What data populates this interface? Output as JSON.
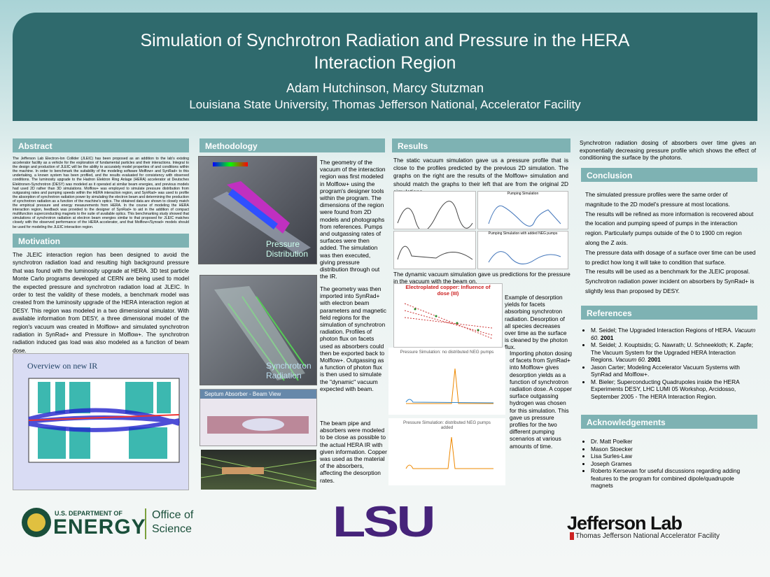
{
  "header": {
    "title": "Simulation of Synchrotron Radiation and Pressure in the HERA Interaction Region",
    "authors": "Adam Hutchinson, Marcy Stutzman",
    "affiliation": "Louisiana State University, Thomas Jefferson National, Accelerator Facility"
  },
  "abstract": {
    "heading": "Abstract",
    "text": "The Jefferson Lab Electron-Ion Collider (JLEIC) has been proposed as an addition to the lab's existing accelerator facility as a vehicle for the exploration of fundamental particles and their interactions. Integral to the design and production of JLEIC will be the ability to accurately model properties of and conditions within the machine. In order to benchmark the suitability of the modeling software Molflow+ and SynRad+ to this undertaking, a known system has been profiled, and the results evaluated for consistency with observed conditions. The luminosity upgrade to the Hadron Elektron Ring Anlage (HERA) accelerator at Deutsches Elektronen-Synchrotron (DESY) was modeled as it operated at similar beam energies, and previous models had used 2D rather than 3D simulations. Molflow+ was employed to simulate pressure distribution from outgassing rates and pumping speeds within the HERA interaction region, and SynRad+ was used to profile the absorption of synchrotron radiation power by simulating the electron beam and determining the production of synchrotron radiation as a function of the machine's optics. The obtained data are shown to closely match the empirical pressure and energy measurements from HERA. In the course of modeling the HERA interaction region, feedback was provided to the designer of SynRad+ to aid in the addition of compact multifunction superconducting magnets to the suite of available optics. This benchmarking study showed that simulations of synchrotron radiation at electron beam energies similar to that proposed for JLEIC matches closely with the observed performance of the HERA accelerator, and that Molflow+/Synrad+ models should be used for modeling the JLEIC interaction region."
  },
  "motivation": {
    "heading": "Motivation",
    "text": "The JLEIC interaction region has been designed to avoid the synchrotron radiation load and resulting high background pressure that was found with the luminosity upgrade at HERA.  3D test particle Monte Carlo programs developed at CERN are being used to model the expected pressure and synchrotron radiation load at JLEIC.  In order to test the validity of these models, a benchmark model was created from the luminosity upgrade of the HERA interaction region at DESY.  This region was modeled in a two dimensional simulator.  With available information from DESY, a three dimensional model of the region's vacuum was created in Molflow+ and simulated synchrotron radiation in SynRad+ and Pressure in Molflow+.  The synchrotron radiation induced gas load was also modeled as a function of beam dose.",
    "figure_title": "Overview on new IR"
  },
  "methodology": {
    "heading": "Methodology",
    "paragraphs": [
      "The geometry of the vacuum of the interaction region was first modeled in Molflow+ using the program's designer tools within the program. The dimensions of the region were found from 2D models and photographs from references.  Pumps and outgassing rates of surfaces were then added. The simulation was then executed, giving pressure distribution through out the IR.",
      "The geometry was then imported into SynRad+ with electron beam parameters and magnetic field regions for the simulation of synchrotron radiation. Profiles of photon flux on facets used as absorbers could then be exported back to Molflow+. Outgassing as a function of photon flux is then used to simulate the \"dynamic\" vacuum expected with beam.",
      "The beam pipe and absorbers were modeled to be close as possible to the actual HERA IR with given information. Copper was used as the material of the absorbers, affecting the desorption rates."
    ],
    "figure_labels": [
      "Pressure Distribution",
      "Synchrotron Radiation"
    ],
    "septum_title": "Septum Absorber - Beam View"
  },
  "results": {
    "heading": "Results",
    "paragraphs": [
      "The static vacuum simulation gave us a pressure profile that is close to the profiles predicted by the previous 2D simulation.  The graphs on the right are the results of the Molflow+ simulation and should match the graphs to their left that are from the original 2D simulations.",
      "The dynamic vacuum simulation gave us predictions for the pressure in the vacuum with the beam on.",
      "Example of desorption yields for facets absorbing synchrotron radiation. Desorption of all species decreases over time as the surface is cleaned by the photon flux.",
      "Importing photon dosing of facets from SynRad+ into Molflow+ gives desorption yields as a function of synchrotron radiation dose. A copper surface outgassing hydrogen was chosen for this simulation. This gave us pressure profiles for the two different pumping scenarios at various amounts of time."
    ],
    "plot_titles": [
      "Pumping Simulation",
      "Pumping Simulation with added NEG pumps",
      "Electroplated copper: Influence of dose (III)",
      "Pressure Simulation: no distributed NEG pumps",
      "Pressure Simulation: distributed NEG pumps added"
    ]
  },
  "dosing_text": "Synchrotron radiation dosing of absorbers over time gives an exponentially decreasing pressure profile which shows the effect of conditioning the surface by the photons.",
  "conclusion": {
    "heading": "Conclusion",
    "items": [
      "The simulated pressure profiles were the same order of magnitude to the 2D model's pressure at most locations.",
      "The results will be refined as more information is recovered about the location and pumping speed of pumps in the interaction region. Particularly pumps outside of the 0 to 1900 cm region along the Z axis.",
      "The pressure data with dosage of a surface over time can be used to predict how long it will take to condition that surface.",
      "The results will be used as a benchmark for the JLEIC proposal.",
      "Synchrotron radiation power incident on absorbers by SynRad+ is slightly less than proposed by DESY."
    ]
  },
  "references": {
    "heading": "References",
    "items": [
      {
        "text": "M. Seidel; The Upgraded Interaction Regions of HERA.",
        "venue": "Vacuum 60.",
        "year": "2001"
      },
      {
        "text": "M. Seidel; J. Kouptsidis; G. Nawrath; U. Schneekloth; K. Zapfe; The Vacuum System for the Upgraded HERA Interaction Regions.",
        "venue": "Vacuum 60.",
        "year": "2001"
      },
      {
        "text": "Jason Carter; Modeling Accelerator Vacuum Systems with SynRad and Molflow+."
      },
      {
        "text": "M. Bieler; Superconducting Quadrupoles inside the HERA Experiments DESY, LHC LUMI 05 Workshop, Arcidosso, September 2005 - The HERA Interaction Region."
      }
    ]
  },
  "acknowledgements": {
    "heading": "Acknowledgements",
    "items": [
      "Dr. Matt Poelker",
      "Mason Stoecker",
      "Lisa Surles-Law",
      "Joseph Grames",
      "Roberto Kersevan for useful discussions regarding adding features to the program for combined dipole/quadrupole magnets"
    ]
  },
  "logos": {
    "doe_top": "U.S. DEPARTMENT OF",
    "doe_main": "ENERGY",
    "office_1": "Office of",
    "office_2": "Science",
    "lsu": "LSU",
    "jlab": "Jefferson Lab",
    "jlab_sub": "Thomas Jefferson National Accelerator Facility"
  }
}
